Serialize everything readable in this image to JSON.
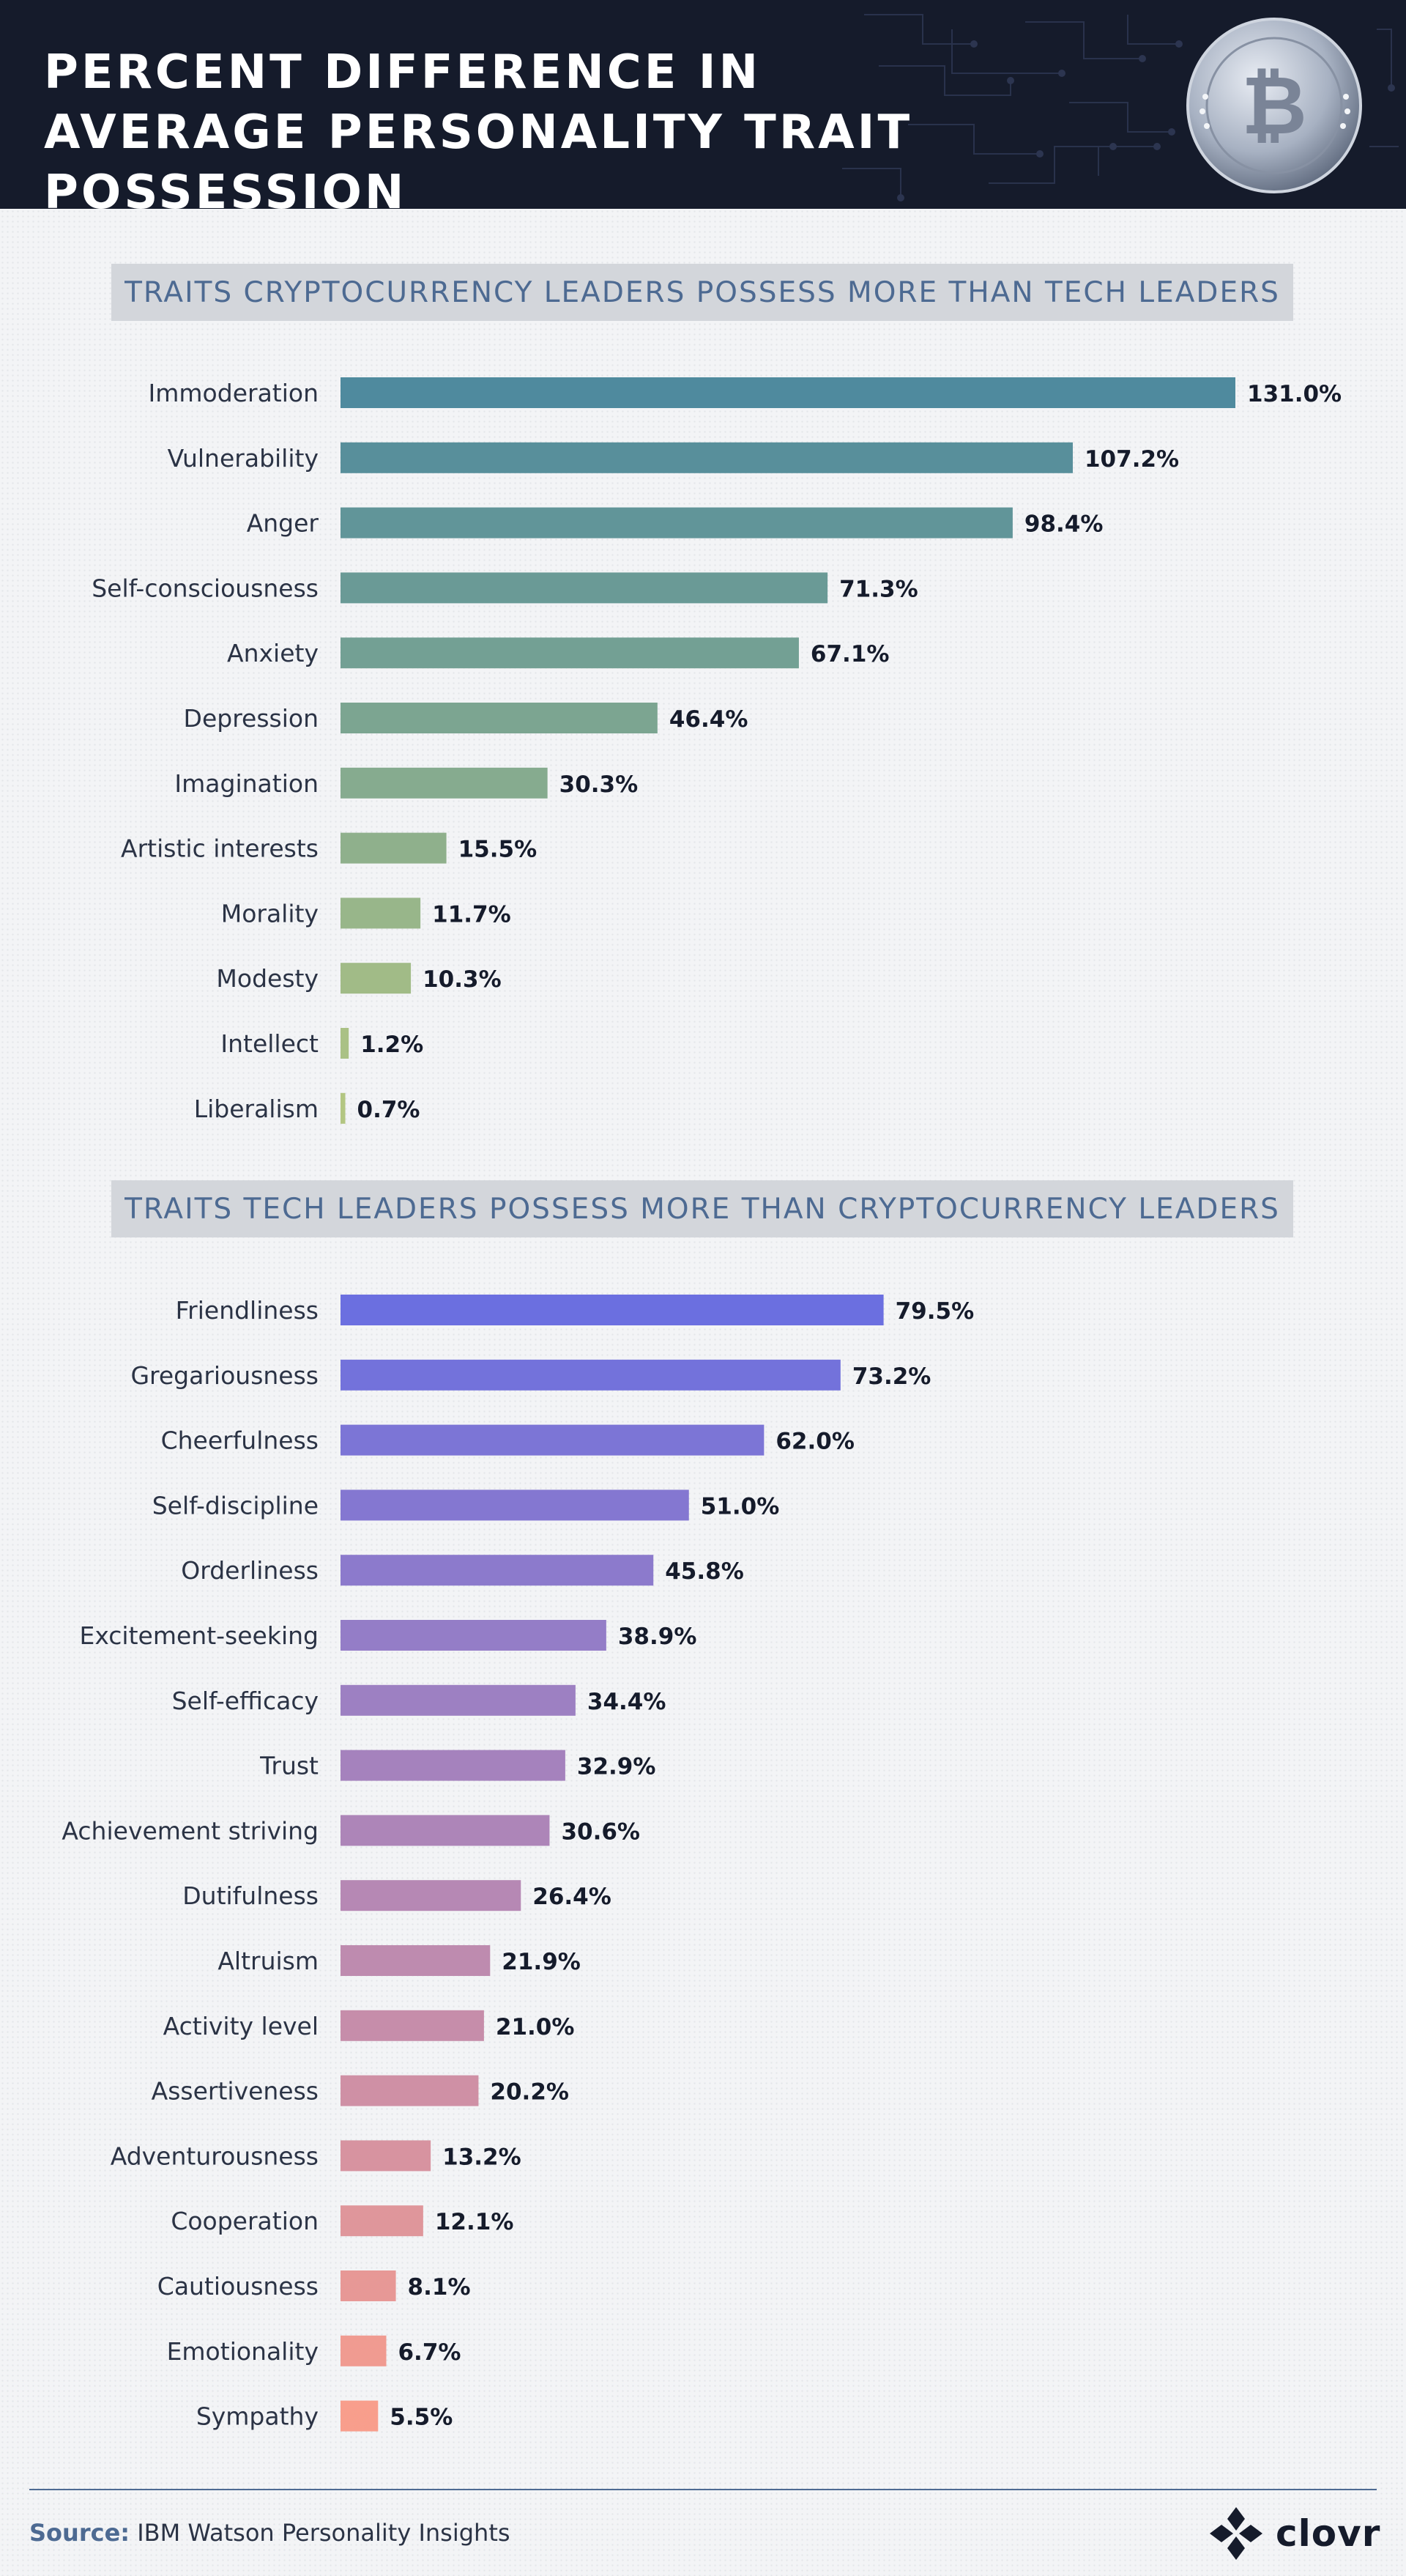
{
  "title": "PERCENT DIFFERENCE IN AVERAGE PERSONALITY TRAIT POSSESSION",
  "source_label": "Source:",
  "source_text": "IBM Watson Personality Insights",
  "logo_text": "clovr",
  "colors": {
    "header_bg": "#151b2b",
    "heading_text": "#4d6a92",
    "label_text": "#2b3345",
    "chart1_gradient": [
      "#4f8a9e",
      "#b3c682"
    ],
    "chart2_gradient": [
      "#6b6fe0",
      "#f89e8c"
    ]
  },
  "chart_data": [
    {
      "type": "bar",
      "orientation": "horizontal",
      "title": "TRAITS CRYPTOCURRENCY LEADERS POSSESS MORE THAN TECH LEADERS",
      "unit": "%",
      "categories": [
        "Immoderation",
        "Vulnerability",
        "Anger",
        "Self-consciousness",
        "Anxiety",
        "Depression",
        "Imagination",
        "Artistic interests",
        "Morality",
        "Modesty",
        "Intellect",
        "Liberalism"
      ],
      "values": [
        131.0,
        107.2,
        98.4,
        71.3,
        67.1,
        46.4,
        30.3,
        15.5,
        11.7,
        10.3,
        1.2,
        0.7
      ],
      "value_labels": [
        "131.0%",
        "107.2%",
        "98.4%",
        "71.3%",
        "67.1%",
        "46.4%",
        "30.3%",
        "15.5%",
        "11.7%",
        "10.3%",
        "1.2%",
        "0.7%"
      ],
      "xlim": [
        0,
        131
      ],
      "grid": false
    },
    {
      "type": "bar",
      "orientation": "horizontal",
      "title": "TRAITS TECH LEADERS POSSESS MORE THAN CRYPTOCURRENCY LEADERS",
      "unit": "%",
      "categories": [
        "Friendliness",
        "Gregariousness",
        "Cheerfulness",
        "Self-discipline",
        "Orderliness",
        "Excitement-seeking",
        "Self-efficacy",
        "Trust",
        "Achievement striving",
        "Dutifulness",
        "Altruism",
        "Activity level",
        "Assertiveness",
        "Adventurousness",
        "Cooperation",
        "Cautiousness",
        "Emotionality",
        "Sympathy"
      ],
      "values": [
        79.5,
        73.2,
        62.0,
        51.0,
        45.8,
        38.9,
        34.4,
        32.9,
        30.6,
        26.4,
        21.9,
        21.0,
        20.2,
        13.2,
        12.1,
        8.1,
        6.7,
        5.5
      ],
      "value_labels": [
        "79.5%",
        "73.2%",
        "62.0%",
        "51.0%",
        "45.8%",
        "38.9%",
        "34.4%",
        "32.9%",
        "30.6%",
        "26.4%",
        "21.9%",
        "21.0%",
        "20.2%",
        "13.2%",
        "12.1%",
        "8.1%",
        "6.7%",
        "5.5%"
      ],
      "xlim": [
        0,
        131
      ],
      "grid": false
    }
  ]
}
